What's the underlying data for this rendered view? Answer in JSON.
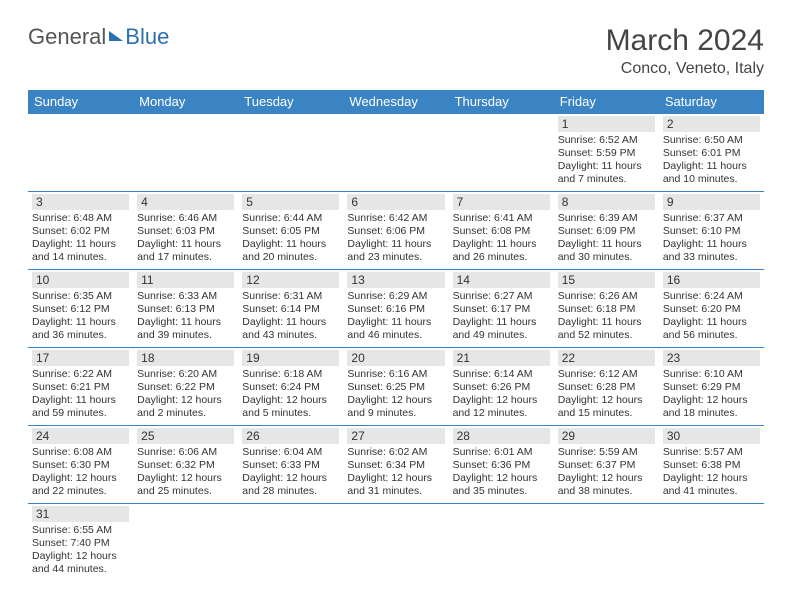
{
  "logo": {
    "general": "General",
    "blue": "Blue"
  },
  "title": "March 2024",
  "location": "Conco, Veneto, Italy",
  "colors": {
    "header_bg": "#3b84c4",
    "header_text": "#ffffff",
    "daynum_bg": "#e6e6e6",
    "rule": "#3b84c4",
    "logo_blue": "#2b6fb3"
  },
  "weekdays": [
    "Sunday",
    "Monday",
    "Tuesday",
    "Wednesday",
    "Thursday",
    "Friday",
    "Saturday"
  ],
  "weeks": [
    [
      {
        "day": "",
        "sunrise": "",
        "sunset": "",
        "daylight": ""
      },
      {
        "day": "",
        "sunrise": "",
        "sunset": "",
        "daylight": ""
      },
      {
        "day": "",
        "sunrise": "",
        "sunset": "",
        "daylight": ""
      },
      {
        "day": "",
        "sunrise": "",
        "sunset": "",
        "daylight": ""
      },
      {
        "day": "",
        "sunrise": "",
        "sunset": "",
        "daylight": ""
      },
      {
        "day": "1",
        "sunrise": "Sunrise: 6:52 AM",
        "sunset": "Sunset: 5:59 PM",
        "daylight": "Daylight: 11 hours and 7 minutes."
      },
      {
        "day": "2",
        "sunrise": "Sunrise: 6:50 AM",
        "sunset": "Sunset: 6:01 PM",
        "daylight": "Daylight: 11 hours and 10 minutes."
      }
    ],
    [
      {
        "day": "3",
        "sunrise": "Sunrise: 6:48 AM",
        "sunset": "Sunset: 6:02 PM",
        "daylight": "Daylight: 11 hours and 14 minutes."
      },
      {
        "day": "4",
        "sunrise": "Sunrise: 6:46 AM",
        "sunset": "Sunset: 6:03 PM",
        "daylight": "Daylight: 11 hours and 17 minutes."
      },
      {
        "day": "5",
        "sunrise": "Sunrise: 6:44 AM",
        "sunset": "Sunset: 6:05 PM",
        "daylight": "Daylight: 11 hours and 20 minutes."
      },
      {
        "day": "6",
        "sunrise": "Sunrise: 6:42 AM",
        "sunset": "Sunset: 6:06 PM",
        "daylight": "Daylight: 11 hours and 23 minutes."
      },
      {
        "day": "7",
        "sunrise": "Sunrise: 6:41 AM",
        "sunset": "Sunset: 6:08 PM",
        "daylight": "Daylight: 11 hours and 26 minutes."
      },
      {
        "day": "8",
        "sunrise": "Sunrise: 6:39 AM",
        "sunset": "Sunset: 6:09 PM",
        "daylight": "Daylight: 11 hours and 30 minutes."
      },
      {
        "day": "9",
        "sunrise": "Sunrise: 6:37 AM",
        "sunset": "Sunset: 6:10 PM",
        "daylight": "Daylight: 11 hours and 33 minutes."
      }
    ],
    [
      {
        "day": "10",
        "sunrise": "Sunrise: 6:35 AM",
        "sunset": "Sunset: 6:12 PM",
        "daylight": "Daylight: 11 hours and 36 minutes."
      },
      {
        "day": "11",
        "sunrise": "Sunrise: 6:33 AM",
        "sunset": "Sunset: 6:13 PM",
        "daylight": "Daylight: 11 hours and 39 minutes."
      },
      {
        "day": "12",
        "sunrise": "Sunrise: 6:31 AM",
        "sunset": "Sunset: 6:14 PM",
        "daylight": "Daylight: 11 hours and 43 minutes."
      },
      {
        "day": "13",
        "sunrise": "Sunrise: 6:29 AM",
        "sunset": "Sunset: 6:16 PM",
        "daylight": "Daylight: 11 hours and 46 minutes."
      },
      {
        "day": "14",
        "sunrise": "Sunrise: 6:27 AM",
        "sunset": "Sunset: 6:17 PM",
        "daylight": "Daylight: 11 hours and 49 minutes."
      },
      {
        "day": "15",
        "sunrise": "Sunrise: 6:26 AM",
        "sunset": "Sunset: 6:18 PM",
        "daylight": "Daylight: 11 hours and 52 minutes."
      },
      {
        "day": "16",
        "sunrise": "Sunrise: 6:24 AM",
        "sunset": "Sunset: 6:20 PM",
        "daylight": "Daylight: 11 hours and 56 minutes."
      }
    ],
    [
      {
        "day": "17",
        "sunrise": "Sunrise: 6:22 AM",
        "sunset": "Sunset: 6:21 PM",
        "daylight": "Daylight: 11 hours and 59 minutes."
      },
      {
        "day": "18",
        "sunrise": "Sunrise: 6:20 AM",
        "sunset": "Sunset: 6:22 PM",
        "daylight": "Daylight: 12 hours and 2 minutes."
      },
      {
        "day": "19",
        "sunrise": "Sunrise: 6:18 AM",
        "sunset": "Sunset: 6:24 PM",
        "daylight": "Daylight: 12 hours and 5 minutes."
      },
      {
        "day": "20",
        "sunrise": "Sunrise: 6:16 AM",
        "sunset": "Sunset: 6:25 PM",
        "daylight": "Daylight: 12 hours and 9 minutes."
      },
      {
        "day": "21",
        "sunrise": "Sunrise: 6:14 AM",
        "sunset": "Sunset: 6:26 PM",
        "daylight": "Daylight: 12 hours and 12 minutes."
      },
      {
        "day": "22",
        "sunrise": "Sunrise: 6:12 AM",
        "sunset": "Sunset: 6:28 PM",
        "daylight": "Daylight: 12 hours and 15 minutes."
      },
      {
        "day": "23",
        "sunrise": "Sunrise: 6:10 AM",
        "sunset": "Sunset: 6:29 PM",
        "daylight": "Daylight: 12 hours and 18 minutes."
      }
    ],
    [
      {
        "day": "24",
        "sunrise": "Sunrise: 6:08 AM",
        "sunset": "Sunset: 6:30 PM",
        "daylight": "Daylight: 12 hours and 22 minutes."
      },
      {
        "day": "25",
        "sunrise": "Sunrise: 6:06 AM",
        "sunset": "Sunset: 6:32 PM",
        "daylight": "Daylight: 12 hours and 25 minutes."
      },
      {
        "day": "26",
        "sunrise": "Sunrise: 6:04 AM",
        "sunset": "Sunset: 6:33 PM",
        "daylight": "Daylight: 12 hours and 28 minutes."
      },
      {
        "day": "27",
        "sunrise": "Sunrise: 6:02 AM",
        "sunset": "Sunset: 6:34 PM",
        "daylight": "Daylight: 12 hours and 31 minutes."
      },
      {
        "day": "28",
        "sunrise": "Sunrise: 6:01 AM",
        "sunset": "Sunset: 6:36 PM",
        "daylight": "Daylight: 12 hours and 35 minutes."
      },
      {
        "day": "29",
        "sunrise": "Sunrise: 5:59 AM",
        "sunset": "Sunset: 6:37 PM",
        "daylight": "Daylight: 12 hours and 38 minutes."
      },
      {
        "day": "30",
        "sunrise": "Sunrise: 5:57 AM",
        "sunset": "Sunset: 6:38 PM",
        "daylight": "Daylight: 12 hours and 41 minutes."
      }
    ],
    [
      {
        "day": "31",
        "sunrise": "Sunrise: 6:55 AM",
        "sunset": "Sunset: 7:40 PM",
        "daylight": "Daylight: 12 hours and 44 minutes."
      },
      {
        "day": "",
        "sunrise": "",
        "sunset": "",
        "daylight": ""
      },
      {
        "day": "",
        "sunrise": "",
        "sunset": "",
        "daylight": ""
      },
      {
        "day": "",
        "sunrise": "",
        "sunset": "",
        "daylight": ""
      },
      {
        "day": "",
        "sunrise": "",
        "sunset": "",
        "daylight": ""
      },
      {
        "day": "",
        "sunrise": "",
        "sunset": "",
        "daylight": ""
      },
      {
        "day": "",
        "sunrise": "",
        "sunset": "",
        "daylight": ""
      }
    ]
  ]
}
